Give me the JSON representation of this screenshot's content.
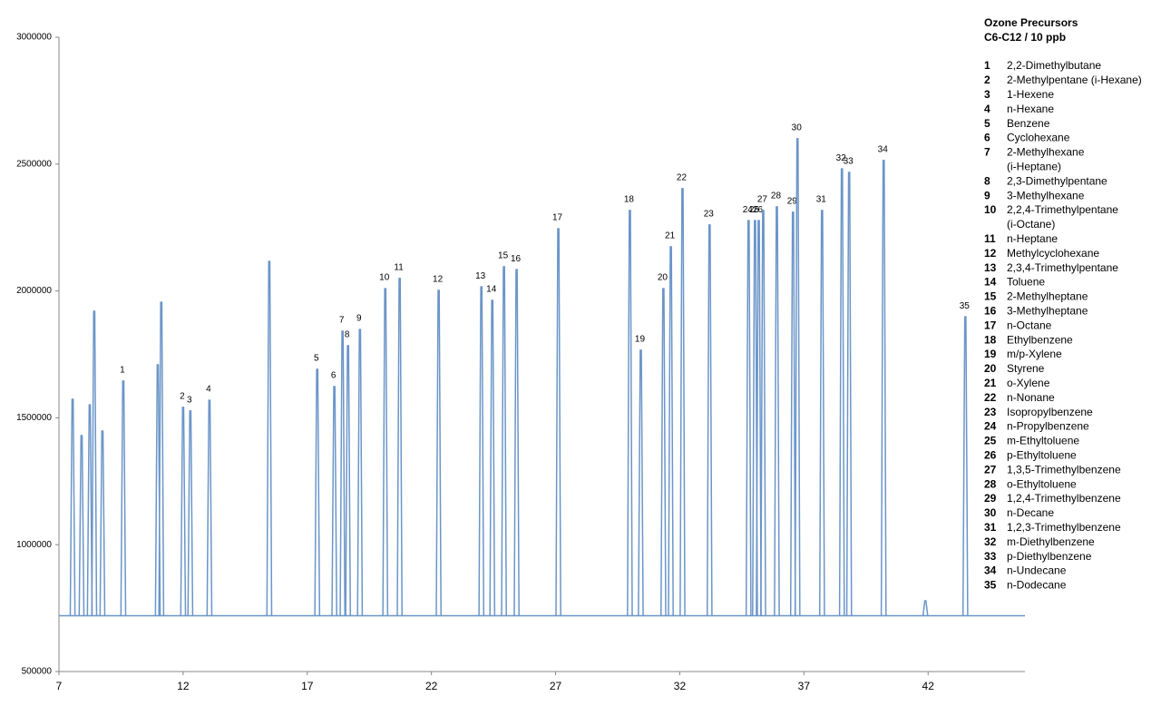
{
  "chart_data": {
    "type": "chromatogram",
    "title": [
      "Ozone Precursors",
      "C6-C12 / 10 ppb"
    ],
    "xlim": [
      7,
      45.9
    ],
    "ylim": [
      500000,
      3000000
    ],
    "xticks": [
      7,
      12,
      17,
      22,
      27,
      32,
      37,
      42
    ],
    "yticks": [
      500000,
      1000000,
      1500000,
      2000000,
      2500000,
      3000000
    ],
    "baseline": 720000,
    "color": "#6b95c8",
    "series": [
      {
        "x": [
          7.55,
          7.91,
          8.24,
          8.42,
          8.75,
          9.59,
          10.98,
          11.12,
          12.0,
          12.29,
          13.06,
          15.47,
          17.4,
          18.09,
          18.42,
          18.64,
          19.12,
          20.14,
          20.72,
          22.29,
          24.01,
          24.45,
          24.92,
          25.43,
          27.11,
          29.99,
          30.43,
          31.34,
          31.64,
          32.11,
          33.2,
          34.77,
          35.03,
          35.18,
          35.36,
          35.91,
          36.56,
          36.74,
          37.73,
          38.53,
          38.82,
          40.21,
          41.89,
          43.5
        ],
        "values": [
          1573000,
          1430000,
          1551000,
          1920000,
          1448000,
          1645000,
          1709000,
          1955000,
          1541000,
          1527000,
          1569000,
          2116000,
          1691000,
          1623000,
          1841000,
          1784000,
          1848000,
          2009000,
          2049000,
          2002000,
          2016000,
          1963000,
          2095000,
          2084000,
          2245000,
          2317000,
          1766000,
          2009000,
          2174000,
          2403000,
          2260000,
          2277000,
          2277000,
          2277000,
          2317000,
          2331000,
          2310000,
          2600000,
          2317000,
          2481000,
          2467000,
          2514000,
          779000,
          1898000
        ],
        "labels": [
          null,
          null,
          null,
          null,
          null,
          "1",
          null,
          null,
          "2",
          "3",
          "4",
          null,
          "5",
          "6",
          "7",
          "8",
          "9",
          "10",
          "11",
          "12",
          "13",
          "14",
          "15",
          "16",
          "17",
          "18",
          "19",
          "20",
          "21",
          "22",
          "23",
          "24",
          "25",
          "26",
          "27",
          "28",
          "29",
          "30",
          "31",
          "32",
          "33",
          "34",
          null,
          "35"
        ]
      }
    ],
    "compounds": [
      {
        "number": "1",
        "name": [
          "2,2-Dimethylbutane"
        ]
      },
      {
        "number": "2",
        "name": [
          "2-Methylpentane (i-Hexane)"
        ]
      },
      {
        "number": "3",
        "name": [
          "1-Hexene"
        ]
      },
      {
        "number": "4",
        "name": [
          "n-Hexane"
        ]
      },
      {
        "number": "5",
        "name": [
          "Benzene"
        ]
      },
      {
        "number": "6",
        "name": [
          "Cyclohexane"
        ]
      },
      {
        "number": "7",
        "name": [
          "2-Methylhexane",
          "(i-Heptane)"
        ]
      },
      {
        "number": "8",
        "name": [
          "2,3-Dimethylpentane"
        ]
      },
      {
        "number": "9",
        "name": [
          "3-Methylhexane"
        ]
      },
      {
        "number": "10",
        "name": [
          "2,2,4-Trimethylpentane",
          "(i-Octane)"
        ]
      },
      {
        "number": "11",
        "name": [
          "n-Heptane"
        ]
      },
      {
        "number": "12",
        "name": [
          "Methylcyclohexane"
        ]
      },
      {
        "number": "13",
        "name": [
          "2,3,4-Trimethylpentane"
        ]
      },
      {
        "number": "14",
        "name": [
          "Toluene"
        ]
      },
      {
        "number": "15",
        "name": [
          "2-Methylheptane"
        ]
      },
      {
        "number": "16",
        "name": [
          "3-Methylheptane"
        ]
      },
      {
        "number": "17",
        "name": [
          "n-Octane"
        ]
      },
      {
        "number": "18",
        "name": [
          "Ethylbenzene"
        ]
      },
      {
        "number": "19",
        "name": [
          "m/p-Xylene"
        ]
      },
      {
        "number": "20",
        "name": [
          "Styrene"
        ]
      },
      {
        "number": "21",
        "name": [
          "o-Xylene"
        ]
      },
      {
        "number": "22",
        "name": [
          "n-Nonane"
        ]
      },
      {
        "number": "23",
        "name": [
          "Isopropylbenzene"
        ]
      },
      {
        "number": "24",
        "name": [
          "n-Propylbenzene"
        ]
      },
      {
        "number": "25",
        "name": [
          "m-Ethyltoluene"
        ]
      },
      {
        "number": "26",
        "name": [
          "p-Ethyltoluene"
        ]
      },
      {
        "number": "27",
        "name": [
          "1,3,5-Trimethylbenzene"
        ]
      },
      {
        "number": "28",
        "name": [
          "o-Ethyltoluene"
        ]
      },
      {
        "number": "29",
        "name": [
          "1,2,4-Trimethylbenzene"
        ]
      },
      {
        "number": "30",
        "name": [
          "n-Decane"
        ]
      },
      {
        "number": "31",
        "name": [
          "1,2,3-Trimethylbenzene"
        ]
      },
      {
        "number": "32",
        "name": [
          "m-Diethylbenzene"
        ]
      },
      {
        "number": "33",
        "name": [
          "p-Diethylbenzene"
        ]
      },
      {
        "number": "34",
        "name": [
          "n-Undecane"
        ]
      },
      {
        "number": "35",
        "name": [
          "n-Dodecane"
        ]
      }
    ]
  }
}
